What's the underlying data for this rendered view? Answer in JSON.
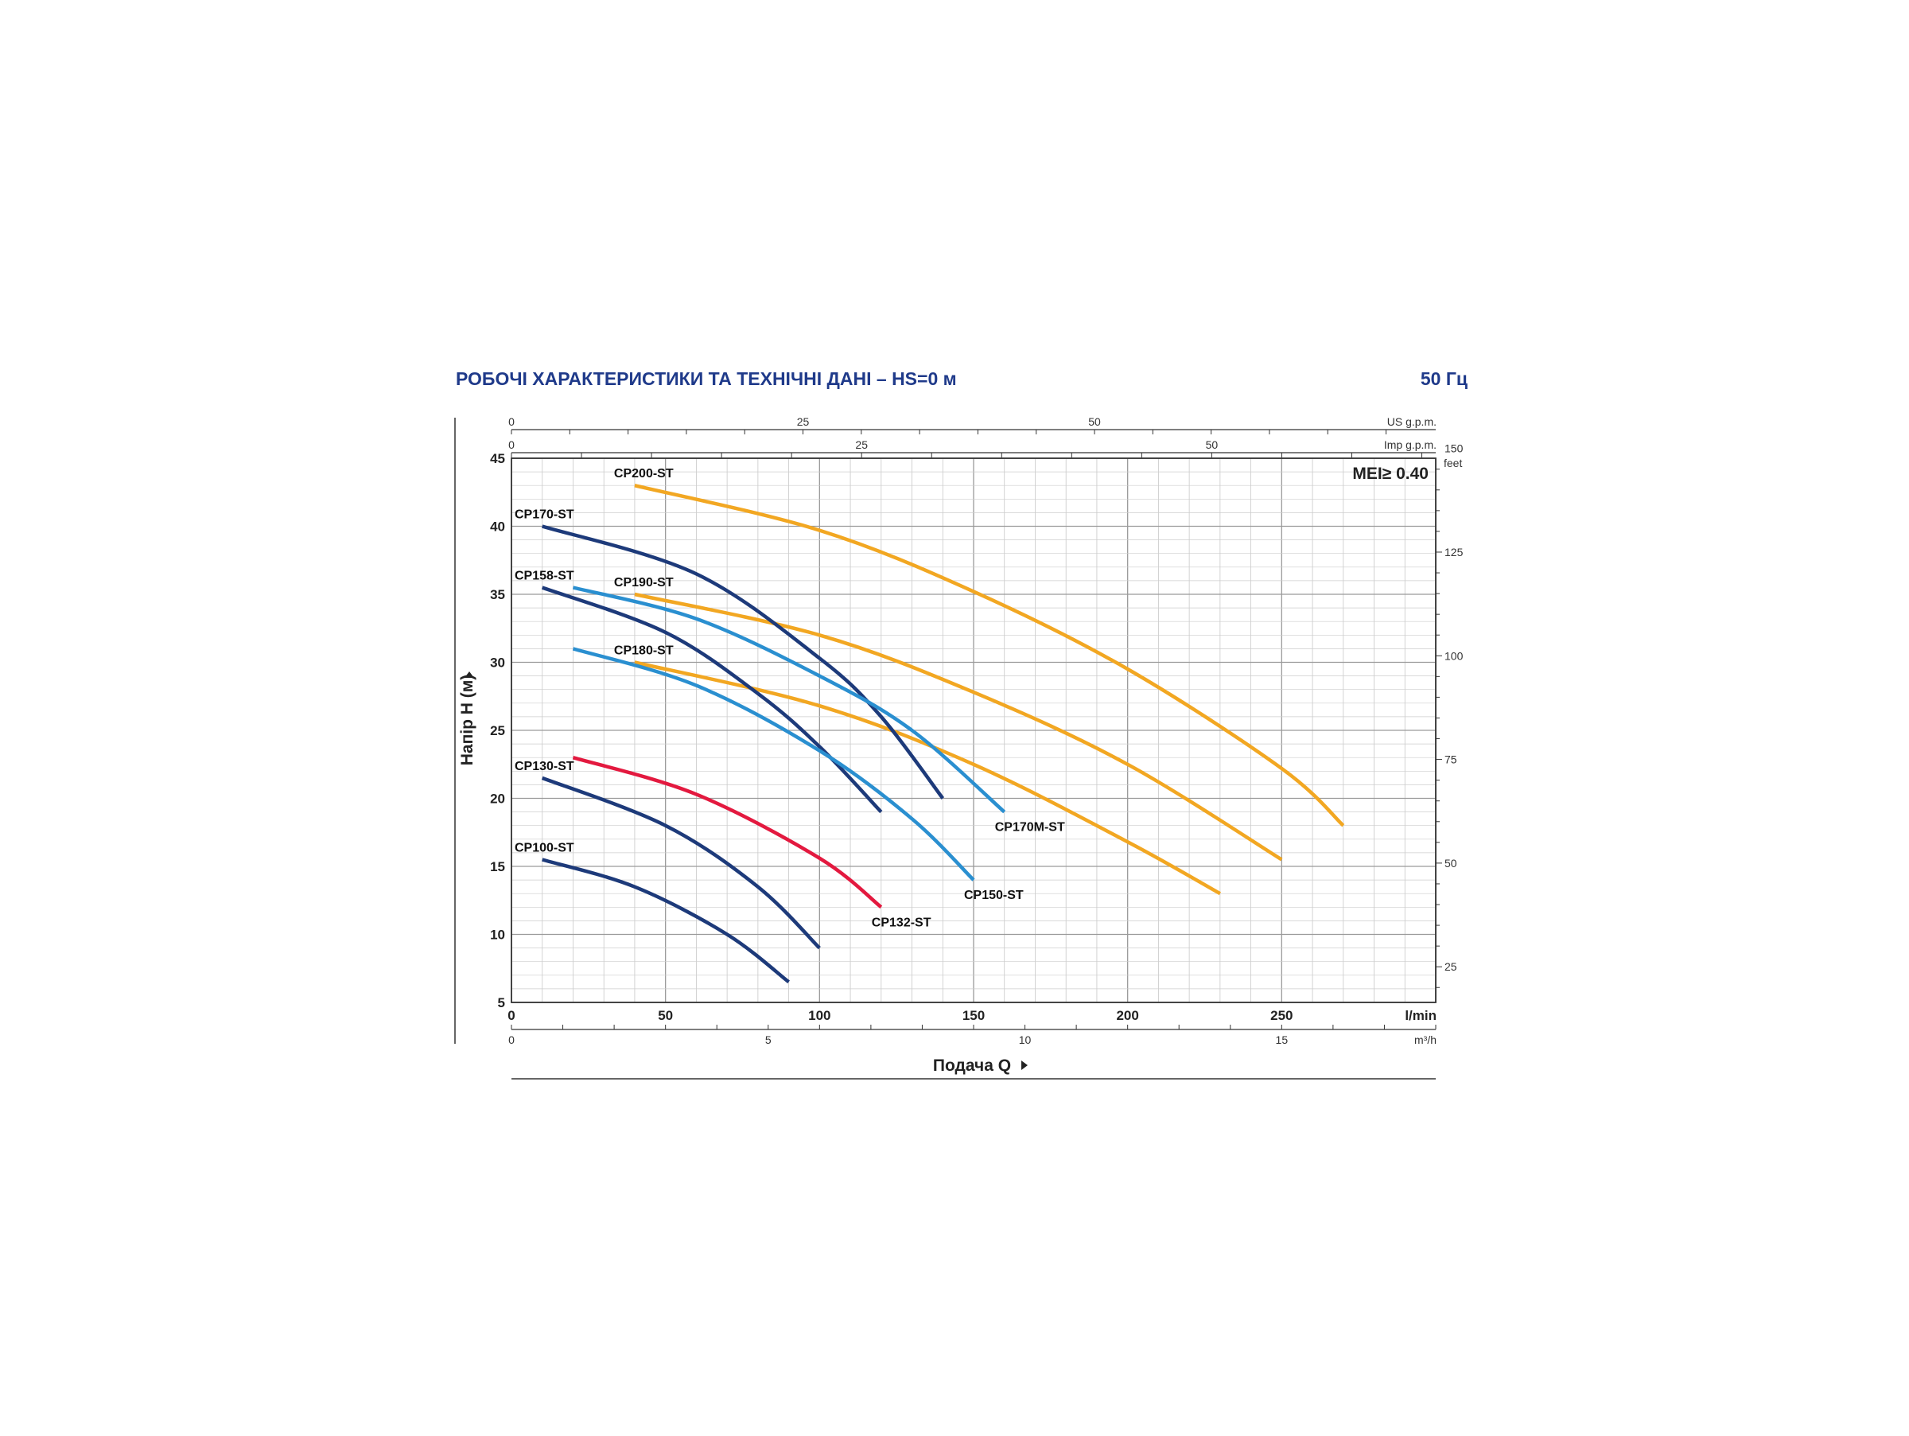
{
  "header": {
    "title": "РОБОЧІ ХАРАКТЕРИСТИКИ ТА ТЕХНІЧНІ ДАНІ  –  HS=0 м",
    "frequency": "50 Гц"
  },
  "chart_data": {
    "type": "line",
    "annotation": "MEI≥ 0.40",
    "xlabel": "Подача Q",
    "ylabel": "Напір H  (м)",
    "xlim": [
      0,
      300
    ],
    "ylim": [
      5,
      45
    ],
    "x_unit": "l/min",
    "x_ticks": [
      0,
      50,
      100,
      150,
      200,
      250
    ],
    "y_ticks": [
      5,
      10,
      15,
      20,
      25,
      30,
      35,
      40,
      45
    ],
    "grid": true,
    "secondary_axes": {
      "us_gpm": {
        "unit": "US g.p.m.",
        "ticks": [
          0,
          25,
          50
        ]
      },
      "imp_gpm": {
        "unit": "Imp g.p.m.",
        "ticks": [
          0,
          25,
          50
        ]
      },
      "m3h": {
        "unit": "m³/h",
        "ticks": [
          0,
          5,
          10,
          15
        ]
      },
      "feet": {
        "unit": "feet",
        "ticks": [
          25,
          50,
          75,
          100,
          125,
          150
        ]
      }
    },
    "series": [
      {
        "name": "CP200-ST",
        "color": "#f2a722",
        "x": [
          40,
          100,
          150,
          200,
          250,
          270
        ],
        "y": [
          43,
          39.7,
          35.2,
          29.5,
          22.2,
          18
        ]
      },
      {
        "name": "CP190-ST",
        "color": "#f2a722",
        "x": [
          40,
          100,
          150,
          200,
          250
        ],
        "y": [
          35,
          32,
          27.8,
          22.5,
          15.5
        ]
      },
      {
        "name": "CP180-ST",
        "color": "#f2a722",
        "x": [
          40,
          100,
          150,
          200,
          230
        ],
        "y": [
          30,
          26.8,
          22.5,
          16.8,
          13
        ]
      },
      {
        "name": "CP170-ST",
        "color": "#1d3a7a",
        "x": [
          10,
          60,
          100,
          120,
          140
        ],
        "y": [
          40,
          36.5,
          30.3,
          26,
          20
        ]
      },
      {
        "name": "CP158-ST",
        "color": "#1d3a7a",
        "x": [
          10,
          50,
          80,
          100,
          120
        ],
        "y": [
          35.5,
          32.2,
          27.7,
          23.8,
          19
        ]
      },
      {
        "name": "CP170M-ST",
        "color": "#2a8fd0",
        "x": [
          20,
          60,
          100,
          130,
          160
        ],
        "y": [
          35.5,
          33.2,
          29,
          25,
          19
        ]
      },
      {
        "name": "CP150-ST",
        "color": "#2a8fd0",
        "x": [
          20,
          60,
          100,
          130,
          150
        ],
        "y": [
          31,
          28.3,
          23.5,
          18.5,
          14
        ]
      },
      {
        "name": "CP132-ST",
        "color": "#e3193f",
        "x": [
          20,
          60,
          100,
          120
        ],
        "y": [
          23,
          20.3,
          15.6,
          12
        ]
      },
      {
        "name": "CP130-ST",
        "color": "#1d3a7a",
        "x": [
          10,
          50,
          80,
          100
        ],
        "y": [
          21.5,
          18,
          13.5,
          9
        ]
      },
      {
        "name": "CP100-ST",
        "color": "#1d3a7a",
        "x": [
          10,
          40,
          70,
          90
        ],
        "y": [
          15.5,
          13.5,
          10,
          6.5
        ]
      }
    ]
  }
}
